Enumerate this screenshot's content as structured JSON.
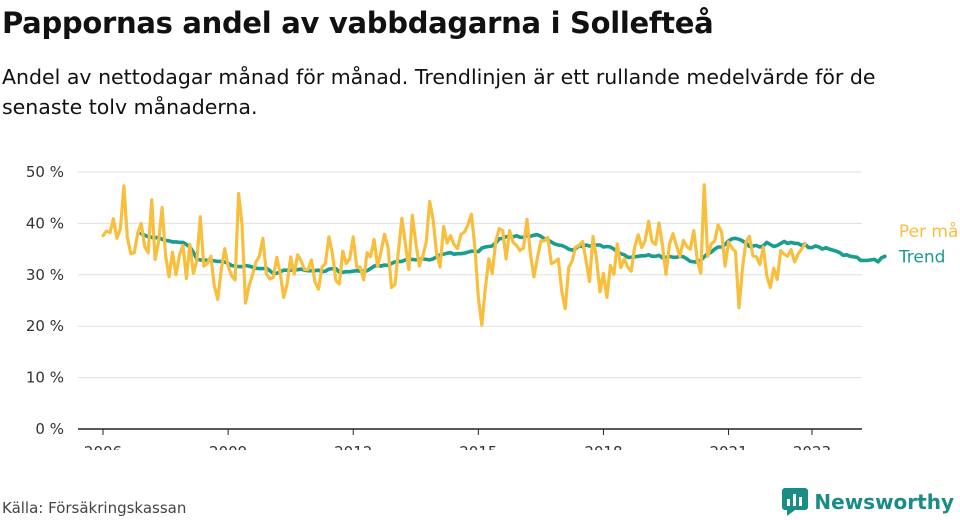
{
  "header": {
    "title": "Pappornas andel av vabbdagarna i Sollefteå",
    "subtitle": "Andel av nettodagar månad för månad. Trendlinjen är ett rullande medelvärde för de senaste tolv månaderna."
  },
  "footer": {
    "source": "Källa: Försäkringskassan",
    "brand": "Newsworthy",
    "brand_icon": "bar-chart-speech-bubble-icon"
  },
  "chart_data": {
    "type": "line",
    "x_axis": {
      "ticks": [
        2006,
        2009,
        2012,
        2015,
        2018,
        2021,
        2023
      ],
      "range": [
        2005.4,
        2024.2
      ]
    },
    "y_axis": {
      "ticks": [
        0,
        10,
        20,
        30,
        40,
        50
      ],
      "tick_labels": [
        "0 %",
        "10 %",
        "20 %",
        "30 %",
        "40 %",
        "50 %"
      ],
      "range": [
        0,
        50
      ],
      "unit": "%"
    },
    "grid": "horizontal",
    "colors": {
      "monthly": "#f8bf3e",
      "trend": "#1a9c8f",
      "grid": "#e0e0e0",
      "axis": "#222222"
    },
    "series": [
      {
        "name": "Per månad",
        "start": "2006-01",
        "values": [
          37.6,
          38.5,
          38.2,
          40.9,
          37.1,
          39.0,
          47.3,
          37.3,
          34.1,
          34.3,
          38.2,
          40.0,
          35.5,
          34.3,
          44.6,
          33.0,
          36.5,
          43.1,
          33.7,
          29.6,
          34.4,
          30.0,
          33.9,
          35.7,
          29.3,
          35.9,
          30.3,
          32.9,
          41.3,
          31.7,
          32.2,
          33.6,
          28.0,
          25.2,
          30.9,
          35.1,
          31.7,
          29.8,
          29.0,
          45.8,
          39.9,
          24.5,
          27.8,
          30.0,
          32.5,
          33.6,
          37.1,
          30.2,
          29.2,
          29.5,
          33.4,
          30.2,
          25.6,
          28.3,
          33.5,
          30.1,
          33.9,
          32.7,
          31.0,
          31.0,
          32.9,
          28.6,
          27.2,
          31.5,
          32.2,
          37.4,
          34.1,
          28.9,
          28.2,
          34.6,
          32.2,
          33.2,
          37.4,
          31.5,
          31.5,
          29.0,
          34.3,
          33.5,
          36.9,
          31.6,
          34.5,
          37.9,
          35.4,
          27.5,
          28.1,
          34.6,
          41.0,
          36.0,
          31.0,
          41.6,
          36.2,
          31.7,
          33.6,
          36.3,
          44.3,
          40.6,
          34.1,
          31.5,
          39.4,
          36.2,
          37.6,
          35.9,
          35.1,
          37.9,
          38.3,
          39.7,
          41.8,
          35.3,
          25.7,
          20.2,
          27.4,
          33.1,
          30.3,
          36.5,
          39.0,
          38.6,
          33.1,
          38.6,
          36.3,
          35.7,
          34.7,
          35.2,
          40.8,
          33.9,
          29.6,
          33.3,
          36.6,
          36.6,
          37.3,
          32.2,
          32.5,
          33.1,
          26.9,
          23.4,
          31.4,
          32.7,
          35.4,
          35.7,
          36.5,
          32.7,
          28.7,
          37.5,
          33.1,
          26.7,
          30.3,
          25.6,
          31.8,
          30.1,
          36.0,
          31.4,
          33.1,
          31.5,
          30.7,
          35.4,
          37.8,
          35.3,
          36.6,
          40.4,
          36.4,
          35.9,
          40.1,
          35.7,
          30.1,
          36.0,
          38.0,
          35.7,
          33.6,
          36.7,
          35.5,
          35.0,
          38.6,
          32.8,
          30.3,
          47.5,
          33.6,
          36.0,
          36.6,
          39.7,
          38.3,
          31.7,
          36.4,
          35.2,
          34.5,
          23.6,
          31.3,
          36.4,
          37.5,
          33.7,
          33.5,
          32.0,
          35.4,
          29.8,
          27.5,
          31.3,
          29.1,
          34.7,
          34.0,
          33.6,
          34.9,
          32.5,
          34.0,
          35.0,
          36.0
        ]
      },
      {
        "name": "Trend",
        "start": "2006-12",
        "values": [
          38.0,
          37.7,
          37.4,
          37.3,
          37.2,
          37.3,
          36.9,
          36.7,
          36.6,
          36.4,
          36.4,
          36.3,
          36.3,
          35.9,
          35.4,
          34.4,
          33.0,
          32.9,
          32.9,
          32.8,
          32.8,
          32.7,
          32.6,
          32.6,
          32.5,
          32.2,
          31.8,
          31.7,
          31.6,
          31.6,
          31.8,
          31.7,
          31.5,
          31.3,
          31.2,
          31.2,
          31.3,
          30.8,
          30.3,
          30.3,
          30.6,
          30.9,
          30.9,
          30.9,
          31.0,
          31.0,
          31.1,
          30.9,
          30.8,
          30.8,
          30.8,
          30.9,
          30.6,
          30.7,
          31.1,
          31.2,
          31.2,
          30.5,
          30.5,
          30.6,
          30.6,
          30.7,
          30.8,
          30.7,
          30.7,
          30.8,
          31.2,
          31.7,
          31.9,
          31.7,
          31.9,
          31.8,
          32.2,
          32.5,
          32.6,
          32.6,
          32.9,
          33.0,
          33.0,
          32.9,
          33.0,
          33.1,
          33.0,
          32.9,
          33.1,
          33.5,
          33.9,
          34.0,
          34.2,
          34.3,
          34.0,
          34.1,
          34.1,
          34.2,
          34.4,
          34.6,
          34.6,
          34.5,
          35.2,
          35.4,
          35.5,
          35.6,
          36.2,
          37.0,
          37.1,
          37.4,
          37.5,
          37.4,
          37.6,
          37.3,
          37.3,
          37.6,
          37.5,
          37.7,
          37.8,
          37.5,
          37.0,
          36.8,
          36.4,
          36.0,
          35.8,
          35.7,
          35.4,
          35.0,
          34.8,
          35.1,
          35.7,
          35.5,
          35.8,
          35.6,
          35.6,
          35.8,
          35.8,
          35.4,
          35.5,
          35.4,
          35.0,
          34.5,
          34.1,
          33.9,
          33.4,
          33.4,
          33.5,
          33.6,
          33.7,
          33.7,
          33.9,
          33.6,
          33.6,
          33.8,
          33.3,
          33.4,
          33.6,
          33.4,
          33.4,
          33.6,
          33.5,
          33.1,
          32.6,
          32.5,
          32.5,
          32.8,
          33.5,
          34.1,
          34.4,
          35.0,
          35.4,
          35.4,
          35.9,
          36.6,
          37.0,
          37.1,
          36.9,
          36.6,
          36.2,
          35.5,
          35.6,
          35.7,
          35.4,
          35.6,
          36.3,
          35.9,
          35.5,
          35.7,
          36.1,
          36.5,
          36.1,
          36.3,
          36.1,
          36.1,
          35.7,
          36.0,
          35.3,
          35.3,
          35.6,
          35.4,
          35.0,
          35.3,
          35.0,
          34.8,
          34.6,
          34.3,
          33.8,
          33.9,
          33.6,
          33.5,
          33.4,
          32.8,
          32.8,
          32.8,
          32.9,
          33.0,
          32.5,
          33.3,
          33.6
        ]
      }
    ]
  }
}
